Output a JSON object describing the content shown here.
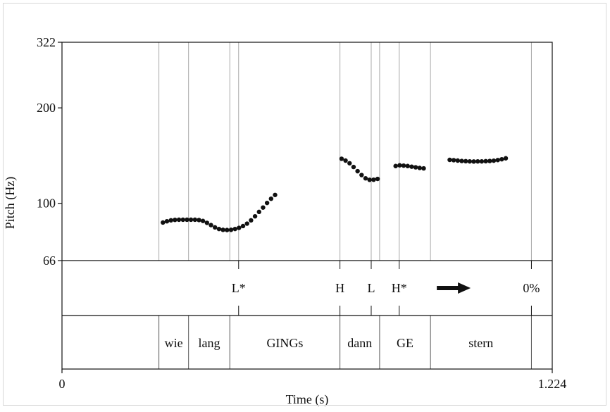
{
  "chart_data": {
    "type": "scatter",
    "title": "",
    "xlabel": "Time (s)",
    "ylabel": "Pitch (Hz)",
    "xlim": [
      0,
      1.224
    ],
    "ylim": [
      66,
      322
    ],
    "y_scale": "log",
    "x_ticks": [
      "0",
      "1.224"
    ],
    "y_ticks": [
      {
        "value": 322,
        "label": "322"
      },
      {
        "value": 200,
        "label": "200"
      },
      {
        "value": 100,
        "label": "100"
      },
      {
        "value": 66,
        "label": "66"
      }
    ],
    "grid": false,
    "boundaries": [
      0.242,
      0.316,
      0.419,
      0.441,
      0.694,
      0.772,
      0.793,
      0.842,
      0.92,
      1.172
    ],
    "pitch_points": [
      {
        "x": 0.252,
        "y": 87
      },
      {
        "x": 0.262,
        "y": 87.8
      },
      {
        "x": 0.272,
        "y": 88.4
      },
      {
        "x": 0.282,
        "y": 88.7
      },
      {
        "x": 0.292,
        "y": 88.8
      },
      {
        "x": 0.302,
        "y": 88.8
      },
      {
        "x": 0.312,
        "y": 88.8
      },
      {
        "x": 0.322,
        "y": 88.8
      },
      {
        "x": 0.332,
        "y": 88.8
      },
      {
        "x": 0.342,
        "y": 88.6
      },
      {
        "x": 0.352,
        "y": 88
      },
      {
        "x": 0.362,
        "y": 86.8
      },
      {
        "x": 0.372,
        "y": 85.4
      },
      {
        "x": 0.382,
        "y": 84
      },
      {
        "x": 0.392,
        "y": 83
      },
      {
        "x": 0.402,
        "y": 82.5
      },
      {
        "x": 0.412,
        "y": 82.4
      },
      {
        "x": 0.422,
        "y": 82.5
      },
      {
        "x": 0.432,
        "y": 83
      },
      {
        "x": 0.442,
        "y": 83.7
      },
      {
        "x": 0.452,
        "y": 84.8
      },
      {
        "x": 0.462,
        "y": 86.3
      },
      {
        "x": 0.472,
        "y": 88.4
      },
      {
        "x": 0.482,
        "y": 91
      },
      {
        "x": 0.492,
        "y": 94
      },
      {
        "x": 0.502,
        "y": 97
      },
      {
        "x": 0.512,
        "y": 100.3
      },
      {
        "x": 0.522,
        "y": 103.4
      },
      {
        "x": 0.532,
        "y": 106.3
      },
      {
        "x": 0.698,
        "y": 138.2
      },
      {
        "x": 0.708,
        "y": 136.4
      },
      {
        "x": 0.718,
        "y": 133.8
      },
      {
        "x": 0.728,
        "y": 130.2
      },
      {
        "x": 0.738,
        "y": 126.3
      },
      {
        "x": 0.748,
        "y": 122.8
      },
      {
        "x": 0.758,
        "y": 119.9
      },
      {
        "x": 0.768,
        "y": 118.6
      },
      {
        "x": 0.778,
        "y": 118.7
      },
      {
        "x": 0.788,
        "y": 119.4
      },
      {
        "x": 0.833,
        "y": 131.1
      },
      {
        "x": 0.843,
        "y": 131.8
      },
      {
        "x": 0.853,
        "y": 131.5
      },
      {
        "x": 0.863,
        "y": 131.1
      },
      {
        "x": 0.873,
        "y": 130.5
      },
      {
        "x": 0.883,
        "y": 129.9
      },
      {
        "x": 0.893,
        "y": 129.3
      },
      {
        "x": 0.903,
        "y": 128.9
      },
      {
        "x": 0.968,
        "y": 137.1
      },
      {
        "x": 0.978,
        "y": 136.8
      },
      {
        "x": 0.988,
        "y": 136.4
      },
      {
        "x": 0.998,
        "y": 136
      },
      {
        "x": 1.008,
        "y": 135.8
      },
      {
        "x": 1.018,
        "y": 135.6
      },
      {
        "x": 1.028,
        "y": 135.5
      },
      {
        "x": 1.038,
        "y": 135.6
      },
      {
        "x": 1.048,
        "y": 135.6
      },
      {
        "x": 1.058,
        "y": 135.8
      },
      {
        "x": 1.068,
        "y": 136
      },
      {
        "x": 1.078,
        "y": 136.3
      },
      {
        "x": 1.088,
        "y": 136.9
      },
      {
        "x": 1.098,
        "y": 137.7
      },
      {
        "x": 1.108,
        "y": 138.7
      }
    ],
    "tones": [
      {
        "x": 0.441,
        "label": "L*"
      },
      {
        "x": 0.694,
        "label": "H"
      },
      {
        "x": 0.772,
        "label": "L"
      },
      {
        "x": 0.842,
        "label": "H*"
      },
      {
        "x": 1.172,
        "label": "0%"
      }
    ],
    "tone_arrow": {
      "x": 0.978
    },
    "words": [
      {
        "start": 0.242,
        "end": 0.316,
        "label": "wie"
      },
      {
        "start": 0.316,
        "end": 0.419,
        "label": "lang"
      },
      {
        "start": 0.419,
        "end": 0.694,
        "label": "GINGs"
      },
      {
        "start": 0.694,
        "end": 0.793,
        "label": "dann"
      },
      {
        "start": 0.793,
        "end": 0.92,
        "label": "GE"
      },
      {
        "start": 0.92,
        "end": 1.172,
        "label": "stern"
      }
    ]
  }
}
